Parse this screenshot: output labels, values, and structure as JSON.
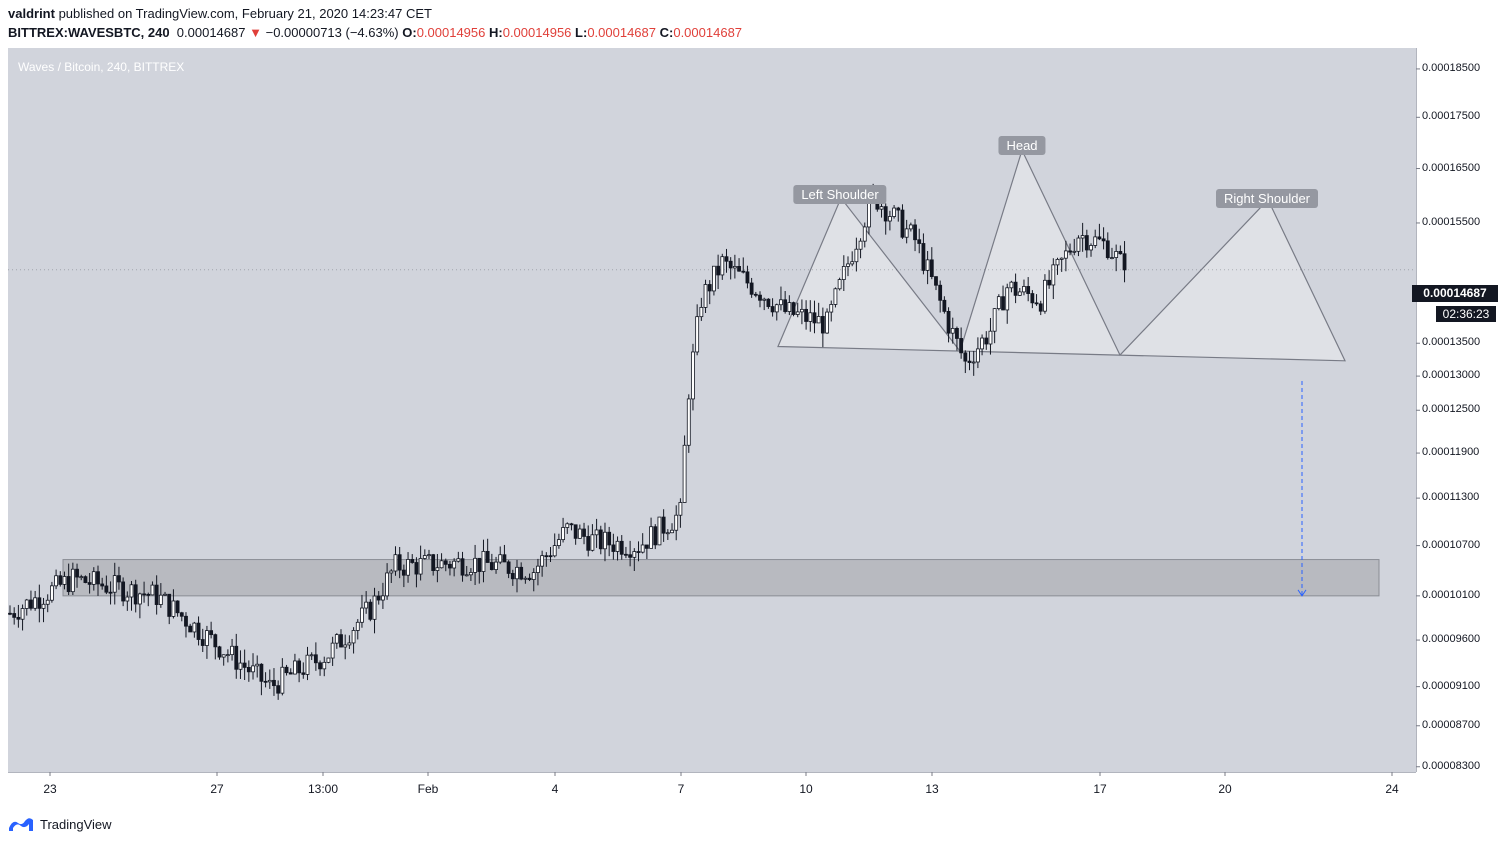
{
  "header": {
    "publisher": "valdrint",
    "published_text": " published on TradingView.com, February 21, 2020 14:23:47 CET",
    "symbol": "BITTREX:WAVESBTC, 240",
    "last": "0.00014687",
    "change_arrow": "▼",
    "change": "−0.00000713 (−4.63%)",
    "o_label": "O:",
    "o_value": "0.00014956",
    "h_label": "H:",
    "h_value": "0.00014956",
    "l_label": "L:",
    "l_value": "0.00014687",
    "c_label": "C:",
    "c_value": "0.00014687"
  },
  "colors": {
    "background": "#d1d4dc",
    "candle_up": "#ffffff",
    "candle_down": "#131722",
    "pattern_fill": "#e3e5ea",
    "pattern_line": "#787b86",
    "zone_fill": "#b8bac0",
    "target_arrow": "#2962ff",
    "negative": "#e0403a"
  },
  "chart_title": "Waves / Bitcoin, 240, BITTREX",
  "last_price_label": "0.00014687",
  "countdown": "02:36:23",
  "footer": {
    "brand": "TradingView",
    "icon": "tradingview-logo-icon"
  },
  "annotations": {
    "left_shoulder": "Left Shoulder",
    "head": "Head",
    "right_shoulder": "Right Shoulder"
  },
  "chart_data": {
    "type": "candlestick",
    "title": "Waves / Bitcoin, 240, BITTREX",
    "y_ticks": [
      "0.00018500",
      "0.00017500",
      "0.00016500",
      "0.00015500",
      "0.00013500",
      "0.00013000",
      "0.00012500",
      "0.00011900",
      "0.00011300",
      "0.00010700",
      "0.00010100",
      "0.00009600",
      "0.00009100",
      "0.00008700",
      "0.00008300"
    ],
    "x_ticks": [
      "23",
      "27",
      "13:00",
      "Feb",
      "4",
      "7",
      "10",
      "13",
      "17",
      "20",
      "24"
    ],
    "y_scale": "log",
    "ylim": [
      8.25e-05,
      0.0001895
    ],
    "support_zone": [
      0.000101,
      0.0001053
    ],
    "head_and_shoulders": {
      "left_shoulder": 0.0001595,
      "head": 0.0001685,
      "right_shoulder": 0.0001592,
      "neckline_start": 0.0001345,
      "neckline_end": 0.0001323
    },
    "target": 0.000101,
    "last_price": 0.00014687,
    "ohlc_series": "approximate 4h candles, Jan 22 - Feb 21, 2020"
  }
}
